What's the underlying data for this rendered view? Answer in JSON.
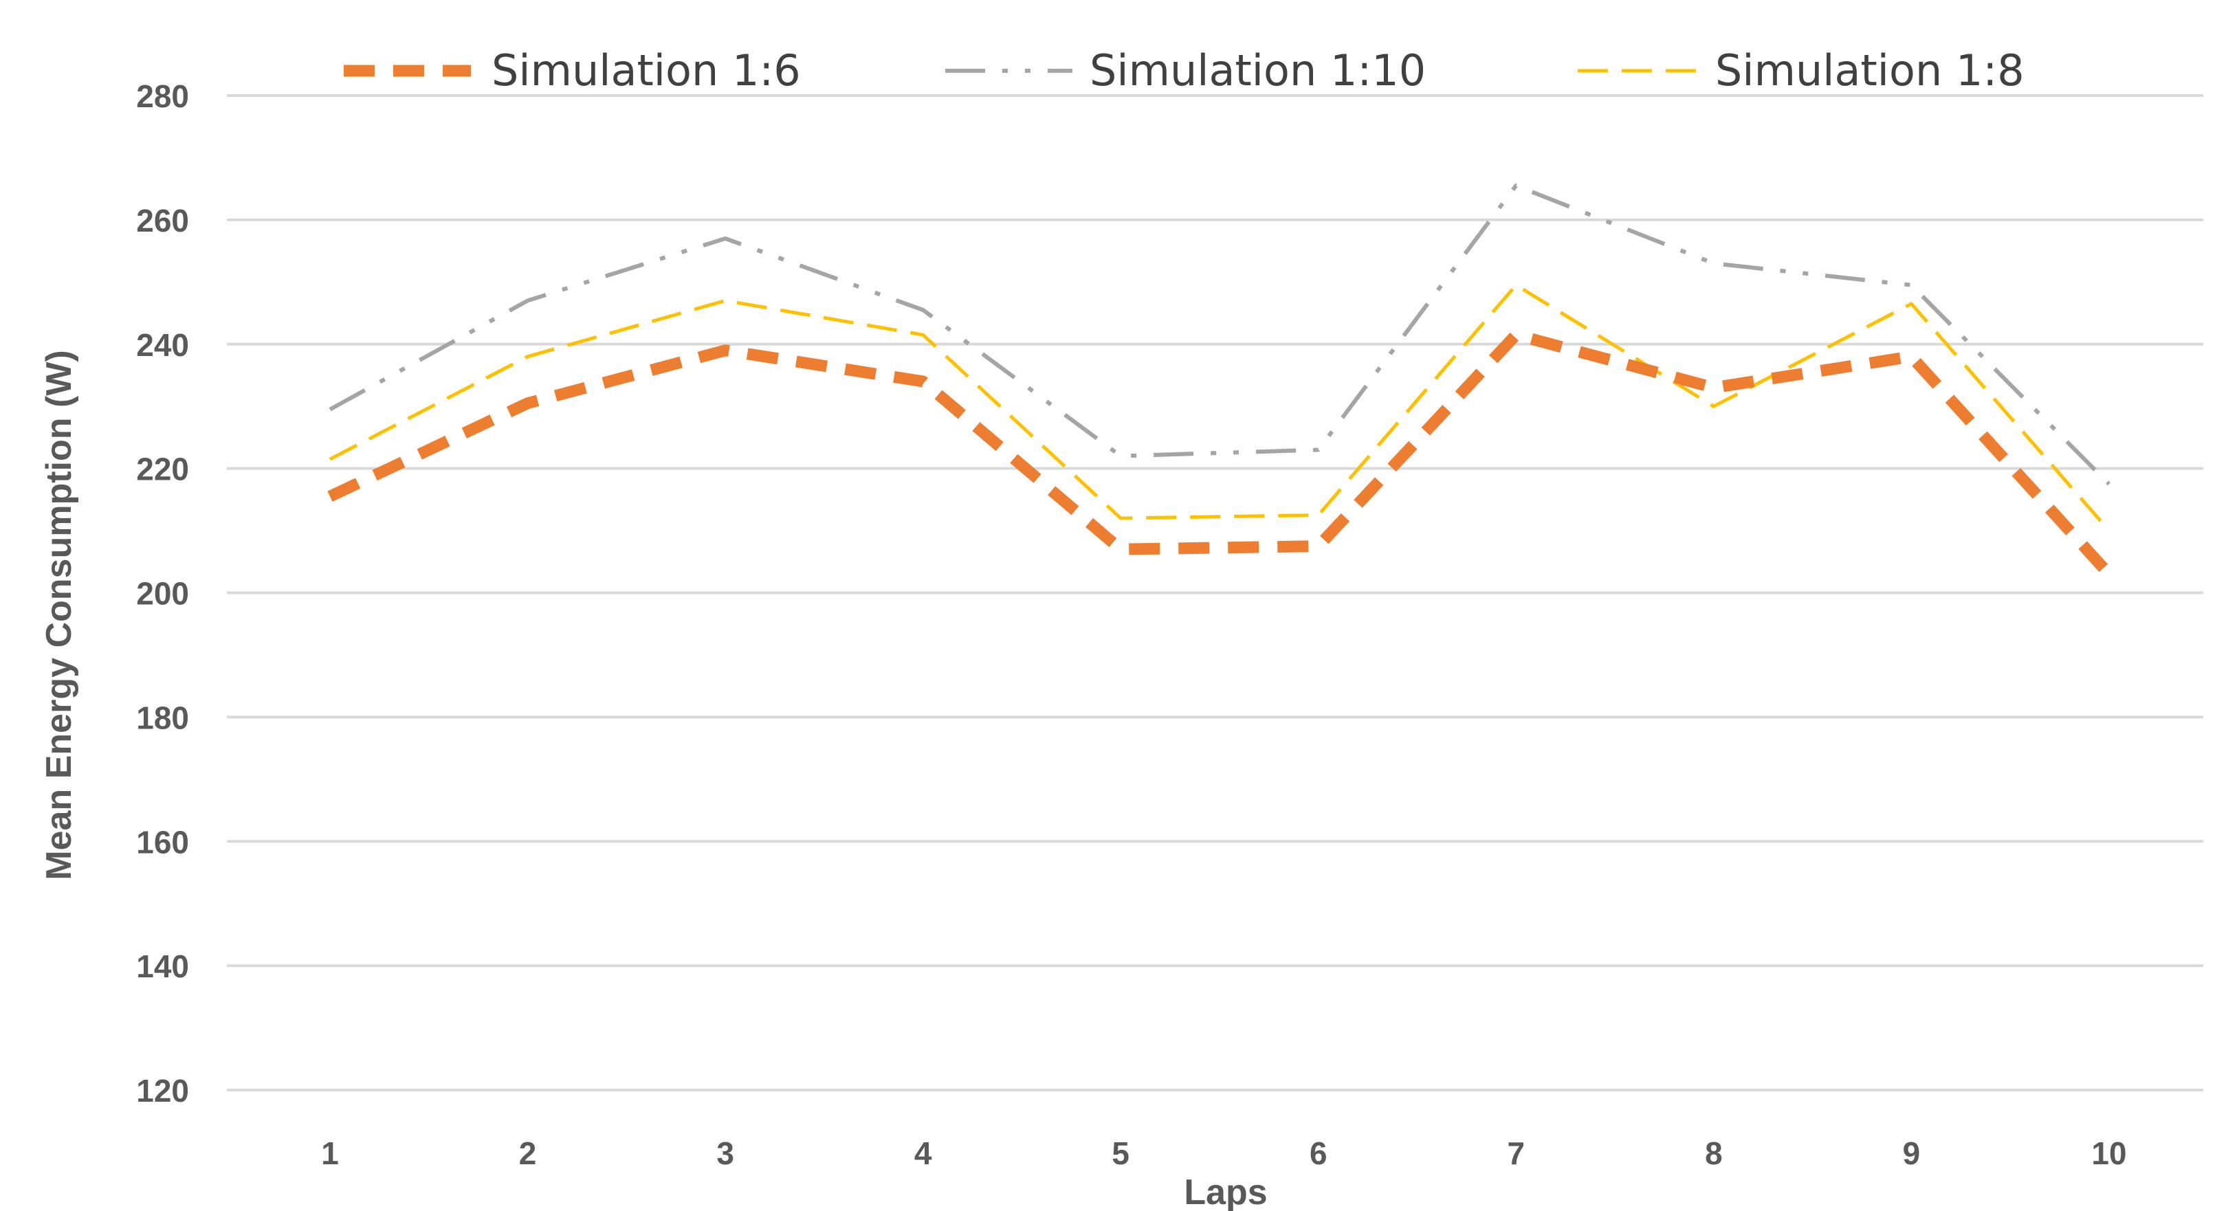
{
  "chart_data": {
    "type": "line",
    "title": "",
    "xlabel": "Laps",
    "ylabel": "Mean Energy Consumption (W)",
    "x": [
      1,
      2,
      3,
      4,
      5,
      6,
      7,
      8,
      9,
      10
    ],
    "ylim": [
      120,
      280
    ],
    "yticks": [
      120,
      140,
      160,
      180,
      200,
      220,
      240,
      260,
      280
    ],
    "grid": true,
    "legend_position": "top",
    "series": [
      {
        "name": "Simulation 1:6",
        "color": "#ED7D31",
        "style": "dashed-thick",
        "values": [
          215.5,
          230.5,
          239,
          234,
          207,
          207.5,
          241.5,
          233,
          238,
          203
        ]
      },
      {
        "name": "Simulation 1:10",
        "color": "#A5A5A5",
        "style": "dash-dot-dot",
        "values": [
          229.5,
          247,
          257,
          245.5,
          222,
          223,
          265.5,
          253,
          249.5,
          217.5
        ]
      },
      {
        "name": "Simulation 1:8",
        "color": "#FFC000",
        "style": "dashed-thin",
        "values": [
          221.5,
          238,
          247,
          241.5,
          212,
          212.5,
          249.5,
          230,
          246.5,
          210
        ]
      }
    ]
  }
}
